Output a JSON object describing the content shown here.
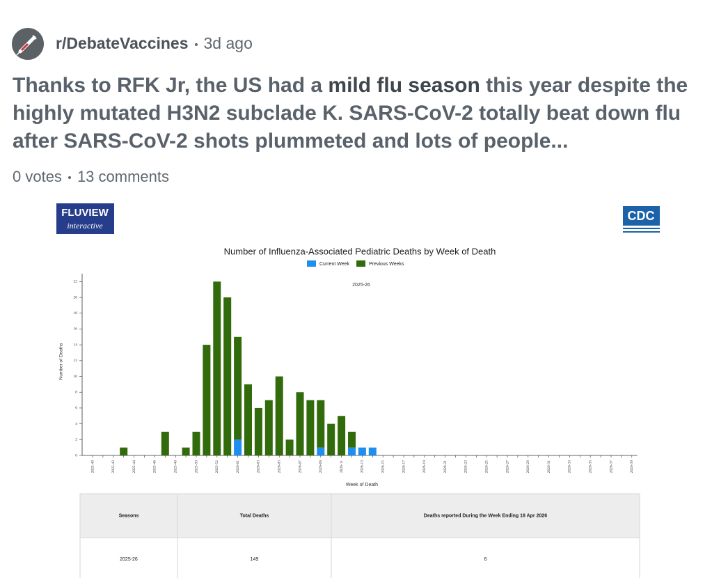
{
  "post": {
    "subreddit": "r/DebateVaccines",
    "age": "3d ago",
    "title_start": "Thanks to RFK Jr, the US had a ",
    "title_bold": "mild flu season",
    "title_end": " this year despite the highly mutated H3N2 subclade K. SARS-CoV-2 totally beat down flu after SARS-CoV-2 shots plummeted and lots of people...",
    "votes": "0 votes",
    "comments": "13 comments"
  },
  "logos": {
    "fluview": "FLUVIEW",
    "fluview_sub": "interactive",
    "cdc": "CDC"
  },
  "chart_data": {
    "type": "bar",
    "stacked": true,
    "title": "Number of Influenza-Associated Pediatric Deaths by Week of Death",
    "annotation": "2025-26",
    "x_label": "Week of Death",
    "y_label": "Number of Deaths",
    "categories": [
      "2025-40",
      null,
      "2025-42",
      null,
      "2025-44",
      null,
      "2025-46",
      null,
      "2025-48",
      null,
      "2025-50",
      null,
      "2025-52",
      null,
      "2026-01",
      null,
      "2026-03",
      null,
      "2026-05",
      null,
      "2026-07",
      null,
      "2026-09",
      null,
      "2026-11",
      null,
      "2026-13",
      null,
      "2026-15",
      null,
      "2026-17",
      null,
      "2026-19",
      null,
      "2026-21",
      null,
      "2026-23",
      null,
      "2026-25",
      null,
      "2026-27",
      null,
      "2026-29",
      null,
      "2026-31",
      null,
      "2026-33",
      null,
      "2026-35",
      null,
      "2026-37",
      null,
      "2026-39"
    ],
    "series": [
      {
        "name": "Current Week",
        "color": "#1e8ff0",
        "values": [
          0,
          0,
          0,
          0,
          0,
          0,
          0,
          0,
          0,
          0,
          0,
          0,
          0,
          0,
          2,
          0,
          0,
          0,
          0,
          0,
          0,
          0,
          1,
          0,
          0,
          1,
          1,
          1,
          0,
          0,
          0,
          0,
          0,
          0,
          0,
          0,
          0,
          0,
          0,
          0,
          0,
          0,
          0,
          0,
          0,
          0,
          0,
          0,
          0,
          0,
          0,
          0,
          0
        ]
      },
      {
        "name": "Previous Weeks",
        "color": "#326b0c",
        "values": [
          0,
          0,
          0,
          1,
          0,
          0,
          0,
          3,
          0,
          1,
          3,
          14,
          22,
          20,
          13,
          9,
          6,
          7,
          10,
          2,
          8,
          7,
          6,
          4,
          5,
          2,
          0,
          0,
          0,
          0,
          0,
          0,
          0,
          0,
          0,
          0,
          0,
          0,
          0,
          0,
          0,
          0,
          0,
          0,
          0,
          0,
          0,
          0,
          0,
          0,
          0,
          0,
          0
        ]
      }
    ],
    "ylim": [
      0,
      23
    ],
    "yticks": [
      0,
      2,
      4,
      6,
      8,
      10,
      12,
      14,
      16,
      18,
      20,
      22
    ],
    "legend": "top"
  },
  "table": {
    "headers": [
      "Seasons",
      "Total Deaths",
      "Deaths reported During the Week Ending 18 Apr 2026"
    ],
    "rows": [
      [
        "2025-26",
        "149",
        "6"
      ]
    ]
  }
}
